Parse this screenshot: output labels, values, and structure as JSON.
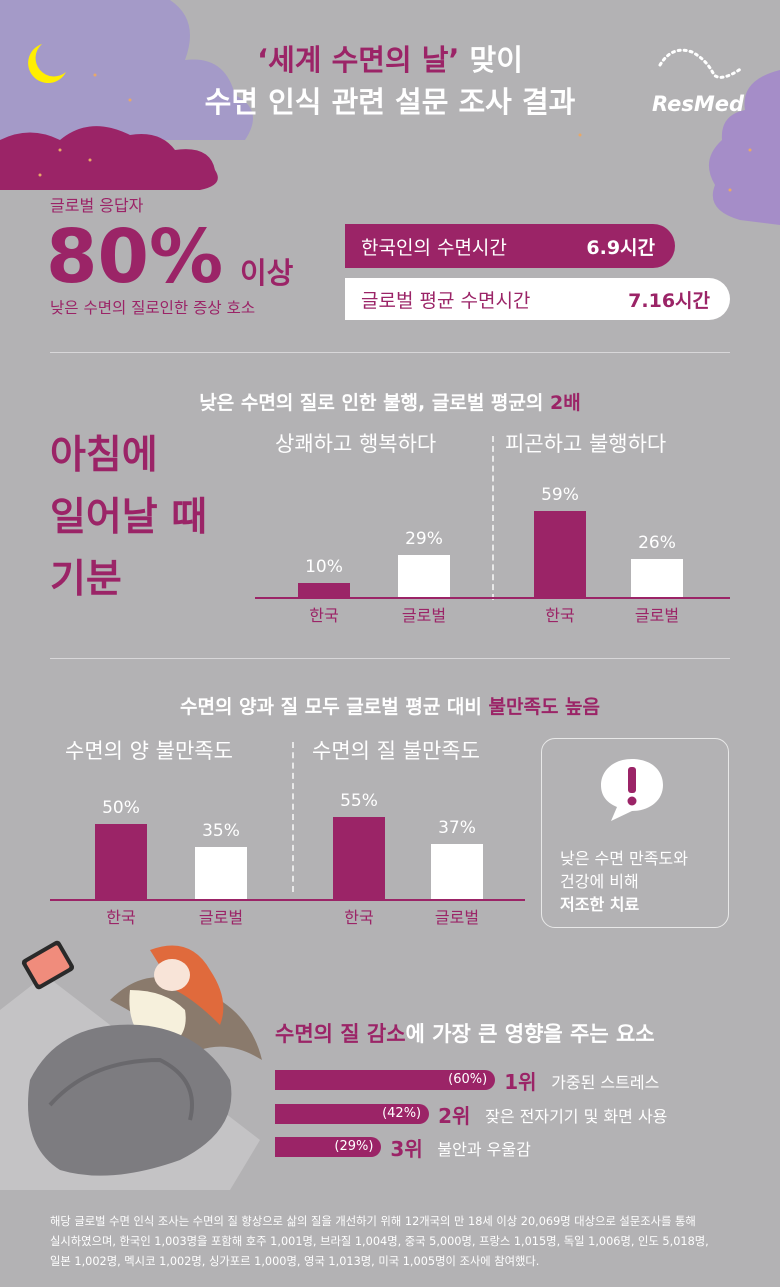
{
  "colors": {
    "accent": "#9b2467",
    "background": "#b3b2b4",
    "lavender": "#a58dc8",
    "white": "#ffffff"
  },
  "header": {
    "title_line1_highlight": "‘세계 수면의 날’",
    "title_line1_rest": " 맞이",
    "title_line2": "수면 인식 관련 설문 조사 결과",
    "logo": "ResMed",
    "icon": "moon-icon"
  },
  "summary": {
    "label": "글로벌 응답자",
    "big_value": "80%",
    "big_suffix": "이상",
    "caption": "낮은 수면의 질로인한 증상 호소"
  },
  "sleep_time": [
    {
      "label": "한국인의 수면시간",
      "value": "6.9시간"
    },
    {
      "label": "글로벌 평균 수면시간",
      "value": "7.16시간"
    }
  ],
  "section1": {
    "heading": "낮은 수면의 질로 인한 불행, 글로벌 평균의 ",
    "heading_highlight": "2배",
    "side_title": [
      "아침에",
      "일어날 때",
      "기분"
    ]
  },
  "section2": {
    "heading": "수면의 양과 질 모두 글로벌 평균 대비 ",
    "heading_highlight": "불만족도 높음",
    "callout_line1": "낮은 수면 만족도와",
    "callout_line2": "건강에 비해",
    "callout_bold": "저조한 치료",
    "callout_icon": "exclamation-bubble-icon"
  },
  "section3": {
    "heading_highlight": "수면의 질 감소",
    "heading_rest": "에 가장 큰 영향을 주는 요소"
  },
  "chart_data": [
    {
      "type": "bar",
      "groups": [
        {
          "label": "상쾌하고 행복하다",
          "categories": [
            "한국",
            "글로벌"
          ],
          "values": [
            10,
            29
          ],
          "value_labels": [
            "10%",
            "29%"
          ]
        },
        {
          "label": "피곤하고 불행하다",
          "categories": [
            "한국",
            "글로벌"
          ],
          "values": [
            59,
            26
          ],
          "value_labels": [
            "59%",
            "26%"
          ]
        }
      ]
    },
    {
      "type": "bar",
      "groups": [
        {
          "label": "수면의 양 불만족도",
          "categories": [
            "한국",
            "글로벌"
          ],
          "values": [
            50,
            35
          ],
          "value_labels": [
            "50%",
            "35%"
          ]
        },
        {
          "label": "수면의 질 불만족도",
          "categories": [
            "한국",
            "글로벌"
          ],
          "values": [
            55,
            37
          ],
          "value_labels": [
            "55%",
            "37%"
          ]
        }
      ]
    },
    {
      "type": "bar",
      "orientation": "horizontal",
      "items": [
        {
          "rank": "1위",
          "label": "가중된 스트레스",
          "value": 60,
          "value_label": "(60%)"
        },
        {
          "rank": "2위",
          "label": "잦은 전자기기 및 화면 사용",
          "value": 42,
          "value_label": "(42%)"
        },
        {
          "rank": "3위",
          "label": "불안과 우울감",
          "value": 29,
          "value_label": "(29%)"
        }
      ]
    }
  ],
  "footnote": [
    "해당 글로벌 수면 인식 조사는 수면의 질 향상으로 삶의 질을 개선하기 위해 12개국의 만 18세 이상 20,069명 대상으로 설문조사를 통해",
    "실시하였으며, 한국인 1,003명을 포함해 호주 1,001명, 브라질 1,004명, 중국 5,000명, 프랑스 1,015명, 독일 1,006명, 인도 5,018명,",
    "일본 1,002명, 멕시코 1,002명, 싱가포르 1,000명, 영국 1,013명, 미국 1,005명이 조사에 참여했다."
  ]
}
